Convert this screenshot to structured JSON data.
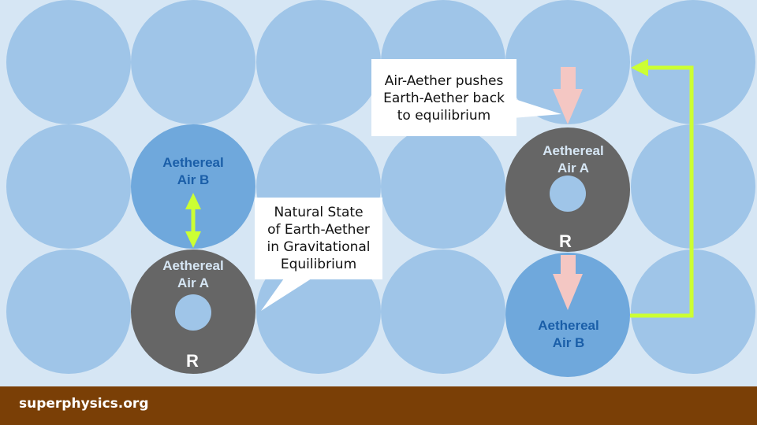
{
  "colors": {
    "background": "#d6e6f4",
    "background_ball": "#9fc5e8",
    "air_b_ball": "#6fa8dc",
    "earth_ring": "#666666",
    "core": "#9fc5e8",
    "air_b_text": "#1a5ea8",
    "air_a_text": "#d6e6f4",
    "arrow_green": "#ccff33",
    "arrow_pink": "#f4c7c3",
    "footer": "#7a3f06"
  },
  "left_group": {
    "air_b_label": "Aethereal\nAir B",
    "air_a_label": "Aethereal\nAir A",
    "r_label": "R",
    "callout": "Natural State\nof Earth-Aether\nin Gravitational\nEquilibrium"
  },
  "right_group": {
    "air_a_label": "Aethereal\nAir A",
    "r_label": "R",
    "air_b_label": "Aethereal\nAir B",
    "callout": "Air-Aether pushes\nEarth-Aether back\nto equilibrium"
  },
  "footer": {
    "site": "superphysics.org"
  }
}
